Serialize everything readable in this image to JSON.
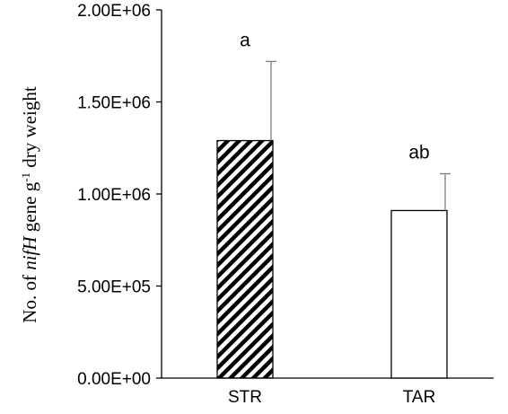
{
  "chart_data": {
    "type": "bar",
    "categories": [
      "STR",
      "TAR"
    ],
    "values": [
      1290000,
      910000
    ],
    "errors": [
      430000,
      200000
    ],
    "significance_labels": [
      "a",
      "ab"
    ],
    "bar_fills": [
      "diagonal-hatch",
      "white"
    ],
    "ylabel": {
      "prefix": "No. of ",
      "gene": "nifH",
      "middle": " gene g",
      "superscript": "-1",
      "suffix": " dry weight"
    },
    "ylim": [
      0,
      2000000
    ],
    "yticks": [
      {
        "value": 0,
        "label": "0.00E+00"
      },
      {
        "value": 500000,
        "label": "5.00E+05"
      },
      {
        "value": 1000000,
        "label": "1.00E+06"
      },
      {
        "value": 1500000,
        "label": "1.50E+06"
      },
      {
        "value": 2000000,
        "label": "2.00E+06"
      }
    ],
    "grid": false,
    "colors": {
      "bar_stroke": "#000000",
      "axis": "#000000",
      "error_bar": "#808080"
    }
  }
}
